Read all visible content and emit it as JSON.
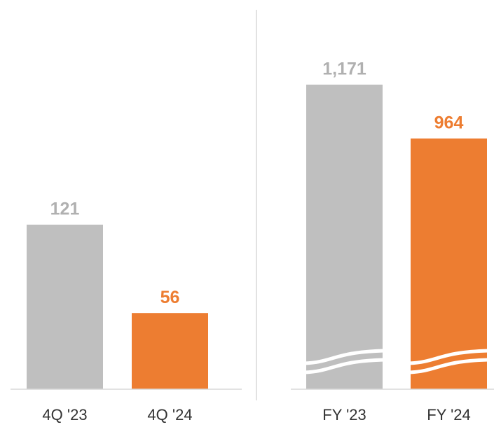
{
  "chart_data": [
    {
      "type": "bar",
      "categories": [
        "4Q '23",
        "4Q '24"
      ],
      "values": [
        121,
        56
      ],
      "colors": [
        "#bfbfbf",
        "#ed7d31"
      ],
      "label_colors": [
        "#b0b0b0",
        "#ed7d31"
      ],
      "ylim": [
        0,
        280
      ]
    },
    {
      "type": "bar",
      "categories": [
        "FY '23",
        "FY '24"
      ],
      "values": [
        1171,
        964
      ],
      "value_labels": [
        "1,171",
        "964"
      ],
      "colors": [
        "#bfbfbf",
        "#ed7d31"
      ],
      "label_colors": [
        "#b0b0b0",
        "#ed7d31"
      ],
      "ylim": [
        0,
        1464
      ],
      "axis_break": true
    }
  ]
}
